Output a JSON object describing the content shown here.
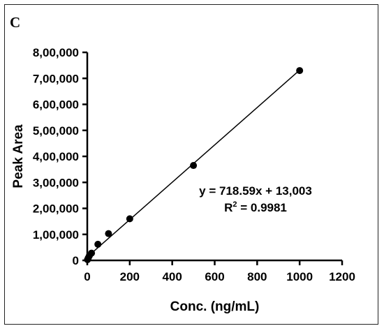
{
  "panel_label": "C",
  "chart_data": {
    "type": "scatter",
    "xlabel": "Conc. (ng/mL)",
    "ylabel": "Peak Area",
    "xlim": [
      0,
      1200
    ],
    "ylim": [
      0,
      800000
    ],
    "x_ticks": [
      0,
      200,
      400,
      600,
      800,
      1000,
      1200
    ],
    "x_tick_labels": [
      "0",
      "200",
      "400",
      "600",
      "800",
      "1000",
      "1200"
    ],
    "y_ticks": [
      0,
      100000,
      200000,
      300000,
      400000,
      500000,
      600000,
      700000,
      800000
    ],
    "y_tick_labels": [
      "0",
      "1,00,000",
      "2,00,000",
      "3,00,000",
      "4,00,000",
      "5,00,000",
      "6,00,000",
      "7,00,000",
      "8,00,000"
    ],
    "grid": false,
    "points": [
      {
        "x": 1,
        "y": 3000
      },
      {
        "x": 5,
        "y": 10000
      },
      {
        "x": 10,
        "y": 18000
      },
      {
        "x": 20,
        "y": 28000
      },
      {
        "x": 50,
        "y": 62000
      },
      {
        "x": 100,
        "y": 103000
      },
      {
        "x": 200,
        "y": 160000
      },
      {
        "x": 500,
        "y": 365000
      },
      {
        "x": 1000,
        "y": 730000
      }
    ],
    "fit": {
      "slope": 718.59,
      "intercept": 13003,
      "x_range": [
        0,
        1000
      ]
    },
    "annotations": {
      "equation": "y = 718.59x + 13,003",
      "r2_prefix": "R",
      "r2_sup": "2",
      "r2_suffix": " = 0.9981"
    }
  }
}
